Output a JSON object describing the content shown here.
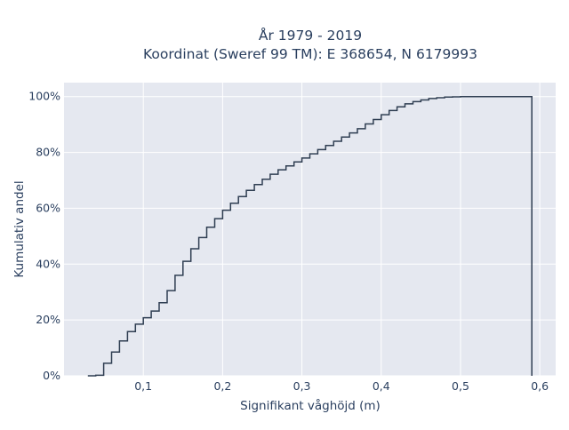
{
  "chart_data": {
    "type": "line",
    "line_shape": "step",
    "title_line1": "År 1979 - 2019",
    "title_line2": "Koordinat (Sweref 99 TM): E 368654, N 6179993",
    "xlabel": "Signifikant våghöjd (m)",
    "ylabel": "Kumulativ andel",
    "xlim": [
      0.0,
      0.62
    ],
    "ylim": [
      0.0,
      1.05
    ],
    "x_ticks": [
      0.1,
      0.2,
      0.3,
      0.4,
      0.5,
      0.6
    ],
    "x_tick_labels": [
      "0,1",
      "0,2",
      "0,3",
      "0,4",
      "0,5",
      "0,6"
    ],
    "y_ticks": [
      0,
      0.2,
      0.4,
      0.6,
      0.8,
      1.0
    ],
    "y_tick_labels": [
      "0%",
      "20%",
      "40%",
      "60%",
      "80%",
      "100%"
    ],
    "grid": true,
    "colors": {
      "plot_bg": "#e5e8f0",
      "grid": "#ffffff",
      "line": "#2f3e52",
      "text": "#2a3f5f"
    },
    "series": [
      {
        "x": [
          0.03,
          0.04,
          0.05,
          0.06,
          0.07,
          0.08,
          0.09,
          0.1,
          0.11,
          0.12,
          0.13,
          0.14,
          0.15,
          0.16,
          0.17,
          0.18,
          0.19,
          0.2,
          0.21,
          0.22,
          0.23,
          0.24,
          0.25,
          0.26,
          0.27,
          0.28,
          0.29,
          0.3,
          0.31,
          0.32,
          0.33,
          0.34,
          0.35,
          0.36,
          0.37,
          0.38,
          0.39,
          0.4,
          0.41,
          0.42,
          0.43,
          0.44,
          0.45,
          0.46,
          0.47,
          0.48,
          0.49,
          0.5,
          0.51,
          0.52,
          0.53,
          0.54,
          0.55,
          0.56,
          0.57,
          0.58,
          0.59,
          0.59
        ],
        "y": [
          0.0,
          0.002,
          0.045,
          0.085,
          0.125,
          0.158,
          0.185,
          0.208,
          0.232,
          0.262,
          0.305,
          0.36,
          0.41,
          0.455,
          0.495,
          0.532,
          0.563,
          0.593,
          0.618,
          0.642,
          0.664,
          0.685,
          0.704,
          0.722,
          0.738,
          0.752,
          0.766,
          0.78,
          0.795,
          0.81,
          0.825,
          0.84,
          0.855,
          0.87,
          0.885,
          0.902,
          0.918,
          0.935,
          0.95,
          0.963,
          0.974,
          0.982,
          0.988,
          0.993,
          0.996,
          0.998,
          0.999,
          1.0,
          1.0,
          1.0,
          1.0,
          1.0,
          1.0,
          1.0,
          1.0,
          1.0,
          1.0,
          0.0
        ]
      }
    ]
  }
}
